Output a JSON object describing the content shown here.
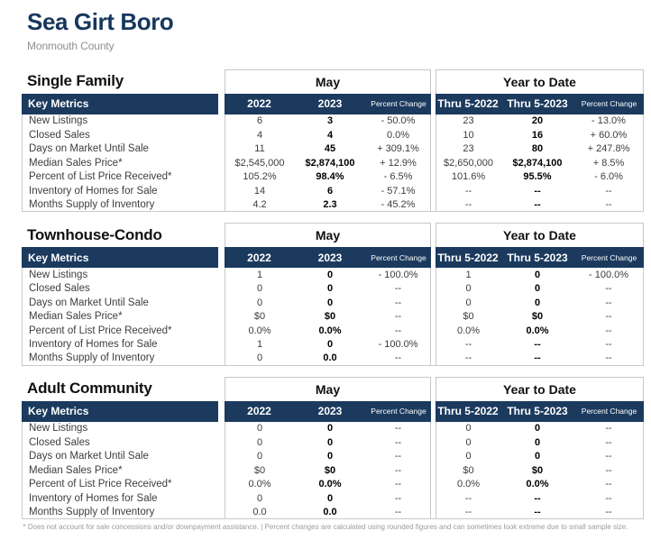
{
  "page": {
    "title": "Sea Girt Boro",
    "subtitle": "Monmouth County",
    "footnote": "* Does not account for sale concessions and/or downpayment assistance.  |  Percent changes are calculated using rounded figures and can sometimes look extreme due to small sample size."
  },
  "colors": {
    "navy": "#1b3a5e",
    "title_navy": "#17375d",
    "border_gray": "#c9c9c9",
    "subtitle_gray": "#8f8f8f"
  },
  "table_headers": {
    "key_metrics": "Key Metrics",
    "may_group": "May",
    "ytd_group": "Year to Date",
    "col_2022": "2022",
    "col_2023": "2023",
    "col_pct": "Percent Change",
    "col_thru_2022": "Thru 5-2022",
    "col_thru_2023": "Thru 5-2023"
  },
  "sections": [
    {
      "title": "Single Family",
      "rows": [
        {
          "label": "New Listings",
          "may": [
            "6",
            "3",
            "- 50.0%"
          ],
          "ytd": [
            "23",
            "20",
            "- 13.0%"
          ]
        },
        {
          "label": "Closed Sales",
          "may": [
            "4",
            "4",
            "0.0%"
          ],
          "ytd": [
            "10",
            "16",
            "+ 60.0%"
          ]
        },
        {
          "label": "Days on Market Until Sale",
          "may": [
            "11",
            "45",
            "+ 309.1%"
          ],
          "ytd": [
            "23",
            "80",
            "+ 247.8%"
          ]
        },
        {
          "label": "Median Sales Price*",
          "may": [
            "$2,545,000",
            "$2,874,100",
            "+ 12.9%"
          ],
          "ytd": [
            "$2,650,000",
            "$2,874,100",
            "+ 8.5%"
          ]
        },
        {
          "label": "Percent of List Price Received*",
          "may": [
            "105.2%",
            "98.4%",
            "- 6.5%"
          ],
          "ytd": [
            "101.6%",
            "95.5%",
            "- 6.0%"
          ]
        },
        {
          "label": "Inventory of Homes for Sale",
          "may": [
            "14",
            "6",
            "- 57.1%"
          ],
          "ytd": [
            "--",
            "--",
            "--"
          ]
        },
        {
          "label": "Months Supply of Inventory",
          "may": [
            "4.2",
            "2.3",
            "- 45.2%"
          ],
          "ytd": [
            "--",
            "--",
            "--"
          ]
        }
      ]
    },
    {
      "title": "Townhouse-Condo",
      "rows": [
        {
          "label": "New Listings",
          "may": [
            "1",
            "0",
            "- 100.0%"
          ],
          "ytd": [
            "1",
            "0",
            "- 100.0%"
          ]
        },
        {
          "label": "Closed Sales",
          "may": [
            "0",
            "0",
            "--"
          ],
          "ytd": [
            "0",
            "0",
            "--"
          ]
        },
        {
          "label": "Days on Market Until Sale",
          "may": [
            "0",
            "0",
            "--"
          ],
          "ytd": [
            "0",
            "0",
            "--"
          ]
        },
        {
          "label": "Median Sales Price*",
          "may": [
            "$0",
            "$0",
            "--"
          ],
          "ytd": [
            "$0",
            "$0",
            "--"
          ]
        },
        {
          "label": "Percent of List Price Received*",
          "may": [
            "0.0%",
            "0.0%",
            "--"
          ],
          "ytd": [
            "0.0%",
            "0.0%",
            "--"
          ]
        },
        {
          "label": "Inventory of Homes for Sale",
          "may": [
            "1",
            "0",
            "- 100.0%"
          ],
          "ytd": [
            "--",
            "--",
            "--"
          ]
        },
        {
          "label": "Months Supply of Inventory",
          "may": [
            "0",
            "0.0",
            "--"
          ],
          "ytd": [
            "--",
            "--",
            "--"
          ]
        }
      ]
    },
    {
      "title": "Adult Community",
      "rows": [
        {
          "label": "New Listings",
          "may": [
            "0",
            "0",
            "--"
          ],
          "ytd": [
            "0",
            "0",
            "--"
          ]
        },
        {
          "label": "Closed Sales",
          "may": [
            "0",
            "0",
            "--"
          ],
          "ytd": [
            "0",
            "0",
            "--"
          ]
        },
        {
          "label": "Days on Market Until Sale",
          "may": [
            "0",
            "0",
            "--"
          ],
          "ytd": [
            "0",
            "0",
            "--"
          ]
        },
        {
          "label": "Median Sales Price*",
          "may": [
            "$0",
            "$0",
            "--"
          ],
          "ytd": [
            "$0",
            "$0",
            "--"
          ]
        },
        {
          "label": "Percent of List Price Received*",
          "may": [
            "0.0%",
            "0.0%",
            "--"
          ],
          "ytd": [
            "0.0%",
            "0.0%",
            "--"
          ]
        },
        {
          "label": "Inventory of Homes for Sale",
          "may": [
            "0",
            "0",
            "--"
          ],
          "ytd": [
            "--",
            "--",
            "--"
          ]
        },
        {
          "label": "Months Supply of Inventory",
          "may": [
            "0.0",
            "0.0",
            "--"
          ],
          "ytd": [
            "--",
            "--",
            "--"
          ]
        }
      ]
    }
  ]
}
